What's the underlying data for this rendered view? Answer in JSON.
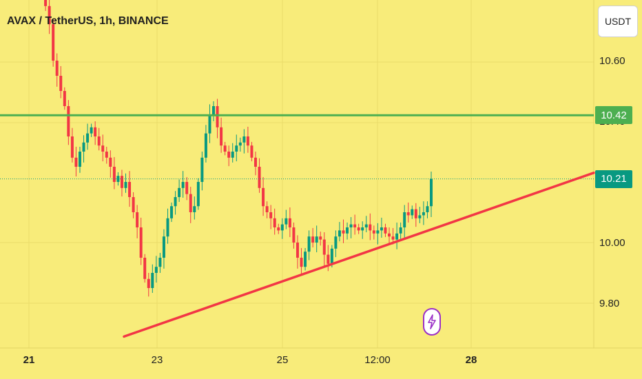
{
  "header": {
    "title": "AVAX / TetherUS, 1h, BINANCE"
  },
  "currency_button": {
    "label": "USDT"
  },
  "price_tags": {
    "resistance": "10.42",
    "current": "10.21"
  },
  "colors": {
    "background": "#f8ec7a",
    "up": "#089981",
    "down": "#f23645",
    "resistance_line": "#4caf50",
    "trendline": "#f23645",
    "current_price_tag": "#089981",
    "resistance_tag": "#4caf50"
  },
  "chart_data": {
    "type": "candlestick",
    "title": "AVAX / TetherUS, 1h, BINANCE",
    "symbol": "AVAX / TetherUS",
    "interval": "1h",
    "exchange": "BINANCE",
    "y_ticks": [
      "10.60",
      "10.40",
      "10.00",
      "9.80"
    ],
    "x_ticks": [
      {
        "label": "21",
        "bold": true
      },
      {
        "label": "23",
        "bold": false
      },
      {
        "label": "25",
        "bold": false
      },
      {
        "label": "12:00",
        "bold": false
      },
      {
        "label": "28",
        "bold": true
      }
    ],
    "ylim": [
      9.7,
      10.8
    ],
    "resistance_level": 10.42,
    "current_price": 10.21,
    "trendline": [
      {
        "x": "22 12:00",
        "y": 9.69
      },
      {
        "x": "28 12:00",
        "y": 10.23
      }
    ],
    "candles_close": [
      10.9,
      10.85,
      10.78,
      10.72,
      10.6,
      10.55,
      10.5,
      10.45,
      10.35,
      10.28,
      10.25,
      10.3,
      10.33,
      10.36,
      10.38,
      10.35,
      10.32,
      10.3,
      10.28,
      10.25,
      10.2,
      10.22,
      10.18,
      10.2,
      10.15,
      10.1,
      10.05,
      9.95,
      9.88,
      9.85,
      9.9,
      9.92,
      9.95,
      10.02,
      10.08,
      10.12,
      10.15,
      10.18,
      10.2,
      10.16,
      10.1,
      10.12,
      10.2,
      10.28,
      10.36,
      10.42,
      10.45,
      10.38,
      10.32,
      10.3,
      10.28,
      10.3,
      10.32,
      10.33,
      10.35,
      10.32,
      10.28,
      10.25,
      10.18,
      10.12,
      10.1,
      10.08,
      10.05,
      10.04,
      10.06,
      10.08,
      10.05,
      10.0,
      9.95,
      9.92,
      9.97,
      10.02,
      10.0,
      10.02,
      10.01,
      9.96,
      9.93,
      9.98,
      10.02,
      10.04,
      10.03,
      10.05,
      10.06,
      10.05,
      10.04,
      10.05,
      10.06,
      10.04,
      10.03,
      10.04,
      10.05,
      10.03,
      10.02,
      10.01,
      10.03,
      10.05,
      10.1,
      10.09,
      10.11,
      10.08,
      10.09,
      10.1,
      10.12,
      10.21
    ]
  }
}
